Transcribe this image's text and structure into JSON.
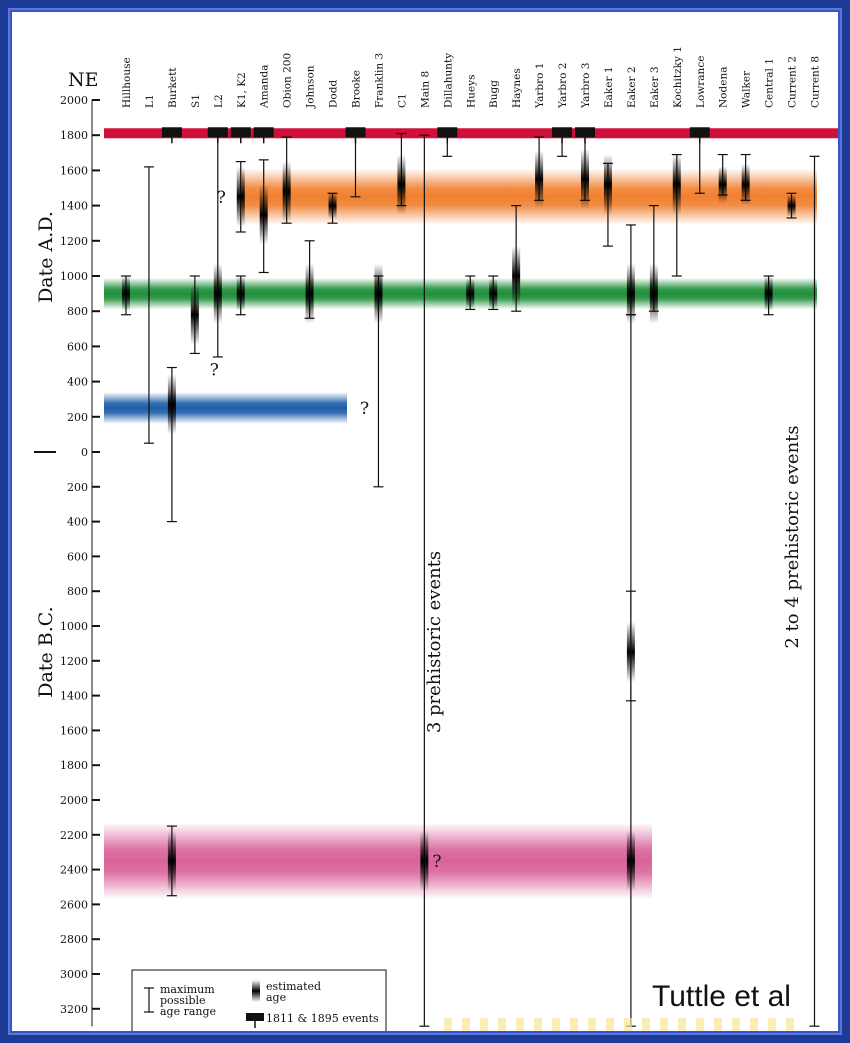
{
  "chart_data": {
    "type": "timeline",
    "corner_label": "NE",
    "ylabel_ad": "Date A.D.",
    "ylabel_bc": "Date B.C.",
    "y_ticks_ad": [
      "2000",
      "1800",
      "1600",
      "1400",
      "1200",
      "1000",
      "800",
      "600",
      "400",
      "200",
      "0"
    ],
    "y_ticks_bc": [
      "200",
      "400",
      "600",
      "800",
      "1000",
      "1200",
      "1400",
      "1600",
      "1800",
      "2000",
      "2200",
      "2400",
      "2600",
      "2800",
      "3000",
      "3200"
    ],
    "sites": [
      "Hillhouse",
      "L1",
      "Burkett",
      "S1",
      "L2",
      "K1, K2",
      "Amanda",
      "Obion 200",
      "Johnson",
      "Dodd",
      "Brooke",
      "Franklin 3",
      "C1",
      "Main 8",
      "Dillahunty",
      "Hueys",
      "Bugg",
      "Haynes",
      "Yarbro 1",
      "Yarbro 2",
      "Yarbro 3",
      "Eaker 1",
      "Eaker 2",
      "Eaker 3",
      "Kochitzky 1",
      "Lowrance",
      "Nodena",
      "Walker",
      "Central 1",
      "Current 2",
      "Current 8"
    ],
    "historic_line_year": 1811,
    "event_bands": [
      {
        "center": 1450,
        "half_width": 160,
        "color": "#f08030"
      },
      {
        "center": 900,
        "half_width": 90,
        "color": "#1f8f3a"
      },
      {
        "center": 250,
        "half_width": 90,
        "color": "#1f5fa8"
      },
      {
        "center": -2350,
        "half_width": 220,
        "color": "#d9639a"
      }
    ],
    "age_ranges": [
      {
        "site": "Hillhouse",
        "min": 780,
        "max": 1000,
        "estimate": 900
      },
      {
        "site": "L1",
        "min": 50,
        "max": 1620
      },
      {
        "site": "Burkett",
        "min": -400,
        "max": 480,
        "estimate": 270
      },
      {
        "site": "Burkett",
        "min": -2550,
        "max": -2150,
        "estimate": -2350
      },
      {
        "site": "S1",
        "min": 560,
        "max": 1000,
        "estimate": 780
      },
      {
        "site": "L2",
        "min": 540,
        "max": 1810,
        "estimate": 900
      },
      {
        "site": "K1, K2",
        "min": 1250,
        "max": 1650,
        "estimate": 1450
      },
      {
        "site": "K1, K2",
        "min": 780,
        "max": 1000,
        "estimate": 900
      },
      {
        "site": "Amanda",
        "min": 1020,
        "max": 1660,
        "estimate": 1350
      },
      {
        "site": "Obion 200",
        "min": 1300,
        "max": 1790,
        "estimate": 1480
      },
      {
        "site": "Johnson",
        "min": 760,
        "max": 1200,
        "estimate": 900
      },
      {
        "site": "Dodd",
        "min": 1300,
        "max": 1470,
        "estimate": 1400
      },
      {
        "site": "Brooke",
        "min": 1450,
        "max": 1810
      },
      {
        "site": "Franklin 3",
        "min": -200,
        "max": 1000,
        "estimate": 900
      },
      {
        "site": "C1",
        "min": 1400,
        "max": 1810,
        "estimate": 1520
      },
      {
        "site": "Main 8",
        "min": -3300,
        "max": 1800,
        "estimate": -2350
      },
      {
        "site": "Dillahunty",
        "min": 1680,
        "max": 1810
      },
      {
        "site": "Hueys",
        "min": 810,
        "max": 1000,
        "estimate": 900
      },
      {
        "site": "Bugg",
        "min": 810,
        "max": 1000,
        "estimate": 900
      },
      {
        "site": "Haynes",
        "min": 800,
        "max": 1400,
        "estimate": 1000
      },
      {
        "site": "Yarbro 1",
        "min": 1430,
        "max": 1790,
        "estimate": 1550
      },
      {
        "site": "Yarbro 2",
        "min": 1680,
        "max": 1810
      },
      {
        "site": "Yarbro 3",
        "min": 1430,
        "max": 1810,
        "estimate": 1550
      },
      {
        "site": "Eaker 1",
        "min": 1170,
        "max": 1640,
        "estimate": 1520
      },
      {
        "site": "Eaker 2",
        "min": 780,
        "max": 1290,
        "estimate": 900
      },
      {
        "site": "Eaker 2",
        "min": -1430,
        "max": -800,
        "estimate": -1150
      },
      {
        "site": "Eaker 2",
        "min": -3300,
        "max": 780,
        "estimate": -2350
      },
      {
        "site": "Eaker 3",
        "min": 800,
        "max": 1400,
        "estimate": 900
      },
      {
        "site": "Kochitzky 1",
        "min": 1000,
        "max": 1690,
        "estimate": 1520
      },
      {
        "site": "Lowrance",
        "min": 1470,
        "max": 1810
      },
      {
        "site": "Nodena",
        "min": 1460,
        "max": 1690,
        "estimate": 1520
      },
      {
        "site": "Walker",
        "min": 1430,
        "max": 1690,
        "estimate": 1520
      },
      {
        "site": "Central 1",
        "min": 780,
        "max": 1000,
        "estimate": 900
      },
      {
        "site": "Current 2",
        "min": 1330,
        "max": 1470,
        "estimate": 1400
      },
      {
        "site": "Current 8",
        "min": -3300,
        "max": 1680
      }
    ],
    "historic_markers": [
      "Burkett",
      "L2",
      "K1, K2",
      "Amanda",
      "Brooke",
      "Dillahunty",
      "Yarbro 2",
      "Yarbro 3",
      "Lowrance"
    ],
    "question_marks": [
      {
        "site": "K1, K2",
        "y": 1450
      },
      {
        "site": "L2",
        "y": 470
      },
      {
        "site": "Franklin 3",
        "y": 250
      },
      {
        "site": "Main 8",
        "y": -2350
      }
    ],
    "annotations": [
      "3 prehistoric events",
      "2 to 4 prehistoric events"
    ],
    "legend": {
      "range_label": [
        "maximum",
        "possible",
        "age range"
      ],
      "estimate_label": [
        "estimated",
        "age"
      ],
      "marker_label": "1811 & 1895 events"
    }
  },
  "credit": "Tuttle et al"
}
